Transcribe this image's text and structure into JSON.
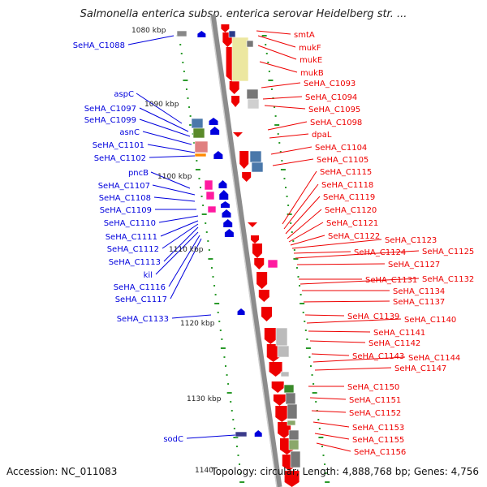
{
  "title": "Salmonella enterica subsp. enterica serovar Heidelberg str. ...",
  "accession": "Accession: NC_011083",
  "topology": "Topology: circular; Length: 4,888,768 bp; Genes: 4,756",
  "colors": {
    "forward_gene": "#ee0000",
    "reverse_gene": "#0000dd",
    "backbone": "#8c8c8c",
    "tick": "#2a9a2a"
  },
  "scale_labels": [
    "1080 kbp",
    "1090 kbp",
    "1100 kbp",
    "1110 kbp",
    "1120 kbp",
    "1130 kbp",
    "1140"
  ],
  "left_labels": [
    "SeHA_C1088",
    "aspC",
    "SeHA_C1097",
    "SeHA_C1099",
    "asnC",
    "SeHA_C1101",
    "SeHA_C1102",
    "pncB",
    "SeHA_C1107",
    "SeHA_C1108",
    "SeHA_C1109",
    "SeHA_C1110",
    "SeHA_C1111",
    "SeHA_C1112",
    "SeHA_C1113",
    "kil",
    "SeHA_C1116",
    "SeHA_C1117",
    "SeHA_C1133",
    "sodC"
  ],
  "right_labels": [
    "smtA",
    "mukF",
    "mukE",
    "mukB",
    "SeHA_C1093",
    "SeHA_C1094",
    "SeHA_C1095",
    "SeHA_C1098",
    "dpaL",
    "SeHA_C1104",
    "SeHA_C1105",
    "SeHA_C1115",
    "SeHA_C1118",
    "SeHA_C1119",
    "SeHA_C1120",
    "SeHA_C1121",
    "SeHA_C1122",
    "SeHA_C1123",
    "SeHA_C1124",
    "SeHA_C1125",
    "SeHA_C1127",
    "SeHA_C1131",
    "SeHA_C1132",
    "SeHA_C1134",
    "SeHA_C1137",
    "SeHA_C1139",
    "SeHA_C1140",
    "SeHA_C1141",
    "SeHA_C1142",
    "SeHA_C1143",
    "SeHA_C1144",
    "SeHA_C1147",
    "SeHA_C1150",
    "SeHA_C1151",
    "SeHA_C1152",
    "SeHA_C1153",
    "SeHA_C1155",
    "SeHA_C1156"
  ]
}
